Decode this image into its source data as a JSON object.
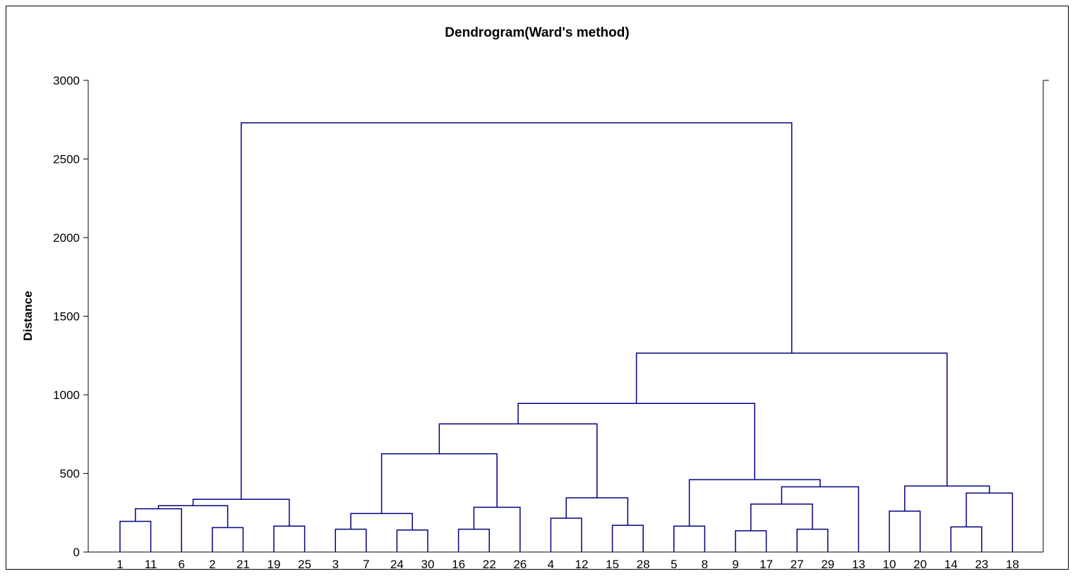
{
  "chart_data": {
    "type": "dendrogram",
    "title": "Dendrogram(Ward's method)",
    "xlabel": "",
    "ylabel": "Distance",
    "ylim": [
      0,
      3000
    ],
    "yticks": [
      0,
      500,
      1000,
      1500,
      2000,
      2500,
      3000
    ],
    "leaves": [
      "1",
      "11",
      "6",
      "2",
      "21",
      "19",
      "25",
      "3",
      "7",
      "24",
      "30",
      "16",
      "22",
      "26",
      "4",
      "12",
      "15",
      "28",
      "5",
      "8",
      "9",
      "17",
      "27",
      "29",
      "13",
      "10",
      "20",
      "14",
      "23",
      "18"
    ],
    "merges": [
      {
        "left": "1",
        "right": "11",
        "height": 195
      },
      {
        "left": "2",
        "right": "21",
        "height": 155
      },
      {
        "left": "19",
        "right": "25",
        "height": 165
      },
      {
        "left": "3",
        "right": "7",
        "height": 145
      },
      {
        "left": "24",
        "right": "30",
        "height": 140
      },
      {
        "left": "16",
        "right": "22",
        "height": 145
      },
      {
        "left": "4",
        "right": "12",
        "height": 215
      },
      {
        "left": "15",
        "right": "28",
        "height": 170
      },
      {
        "left": "5",
        "right": "8",
        "height": 165
      },
      {
        "left": "9",
        "right": "17",
        "height": 135
      },
      {
        "left": "27",
        "right": "29",
        "height": 145
      },
      {
        "left": "10",
        "right": "20",
        "height": 260
      },
      {
        "left": "14",
        "right": "23",
        "height": 160
      },
      {
        "left": "(1,11)",
        "right": "6",
        "height": 275
      },
      {
        "left": "(1,11,6)",
        "right": "(2,21)",
        "height": 295
      },
      {
        "left": "(1,11,6,2,21)",
        "right": "(19,25)",
        "height": 335
      },
      {
        "left": "(3,7)",
        "right": "(24,30)",
        "height": 245
      },
      {
        "left": "(16,22)",
        "right": "26",
        "height": 285
      },
      {
        "left": "(3,7,24,30)",
        "right": "(16,22,26)",
        "height": 625
      },
      {
        "left": "(4,12)",
        "right": "(15,28)",
        "height": 345
      },
      {
        "left": "(3..26)",
        "right": "(4,12,15,28)",
        "height": 815
      },
      {
        "left": "(9,17)",
        "right": "(27,29)",
        "height": 305
      },
      {
        "left": "(9,17,27,29)",
        "right": "13",
        "height": 415
      },
      {
        "left": "(5,8)",
        "right": "(9,17,27,29,13)",
        "height": 460
      },
      {
        "left": "(3..28)",
        "right": "(5..13)",
        "height": 945
      },
      {
        "left": "(14,23)",
        "right": "18",
        "height": 375
      },
      {
        "left": "(10,20)",
        "right": "(14,23,18)",
        "height": 420
      },
      {
        "left": "(3..13)",
        "right": "(10..18)",
        "height": 1265
      },
      {
        "left": "(1..25)",
        "right": "(3..18)",
        "height": 2730
      }
    ],
    "line_color": "#000080",
    "grid": false,
    "legend": "none"
  }
}
